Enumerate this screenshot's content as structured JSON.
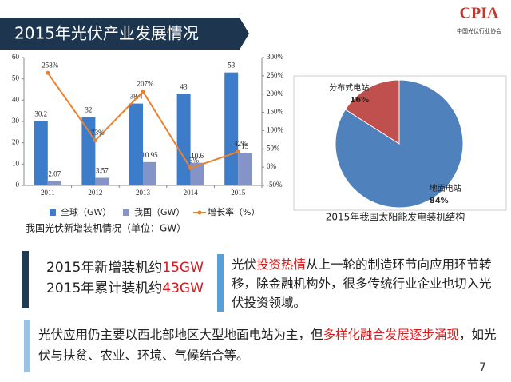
{
  "header": {
    "title": "2015年光伏产业发展情况",
    "logo": "CPIA",
    "org": "中国光伏行业协会"
  },
  "chart_data": [
    {
      "type": "bar",
      "title": "我国光伏新增装机情况（单位：GW）",
      "categories": [
        "2011",
        "2012",
        "2013",
        "2014",
        "2015"
      ],
      "series": [
        {
          "name": "全球（GW）",
          "type": "bar",
          "color": "#3d7cc9",
          "values": [
            30.2,
            32,
            38.4,
            43,
            53
          ]
        },
        {
          "name": "我国（GW）",
          "type": "bar",
          "color": "#8494c9",
          "values": [
            2.07,
            3.57,
            10.95,
            10.6,
            15
          ]
        },
        {
          "name": "增长率（%）",
          "type": "line",
          "axis": "y2",
          "color": "#e8822e",
          "values": [
            258,
            73,
            207,
            -3,
            42
          ],
          "value_labels": [
            "258%",
            "73%",
            "207%",
            "-3%",
            "42%"
          ]
        }
      ],
      "ylim": [
        0,
        60
      ],
      "yticks": [
        0,
        10,
        20,
        30,
        40,
        50,
        60
      ],
      "y2lim": [
        -50,
        300
      ],
      "y2ticks": [
        {
          "value": -50,
          "label": "-50%"
        },
        {
          "value": 0,
          "label": "0%"
        },
        {
          "value": 50,
          "label": "50%"
        },
        {
          "value": 100,
          "label": "100%"
        },
        {
          "value": 150,
          "label": "150%"
        },
        {
          "value": 200,
          "label": "200%"
        },
        {
          "value": 250,
          "label": "250%"
        },
        {
          "value": 300,
          "label": "300%"
        }
      ],
      "grid": false,
      "legend": "bottom"
    },
    {
      "type": "pie",
      "title": "2015年我国太阳能发电装机结构",
      "categories": [
        "分布式电站",
        "地面电站"
      ],
      "values": [
        16,
        84
      ],
      "value_labels": [
        "16%",
        "84%"
      ],
      "colors": [
        "#c0504d",
        "#4f81bd"
      ]
    }
  ],
  "highlights": {
    "box1": {
      "line1": [
        "2015年新增装机约",
        "15GW"
      ],
      "line2": [
        "2015年累计装机约",
        "43GW"
      ]
    },
    "box2": [
      "光伏",
      "投资热情",
      "从上一轮的制造环节向应用环节转移，除金融机构外，很多传统行业企业也切入光伏投资领域。"
    ],
    "box3": [
      "光伏应用仍主要以西北部地区大型地面电站为主，但",
      "多样化融合发展逐步涌现",
      "，如光伏与扶贫、农业、环境、气候结合等。"
    ]
  },
  "page_number": "7"
}
